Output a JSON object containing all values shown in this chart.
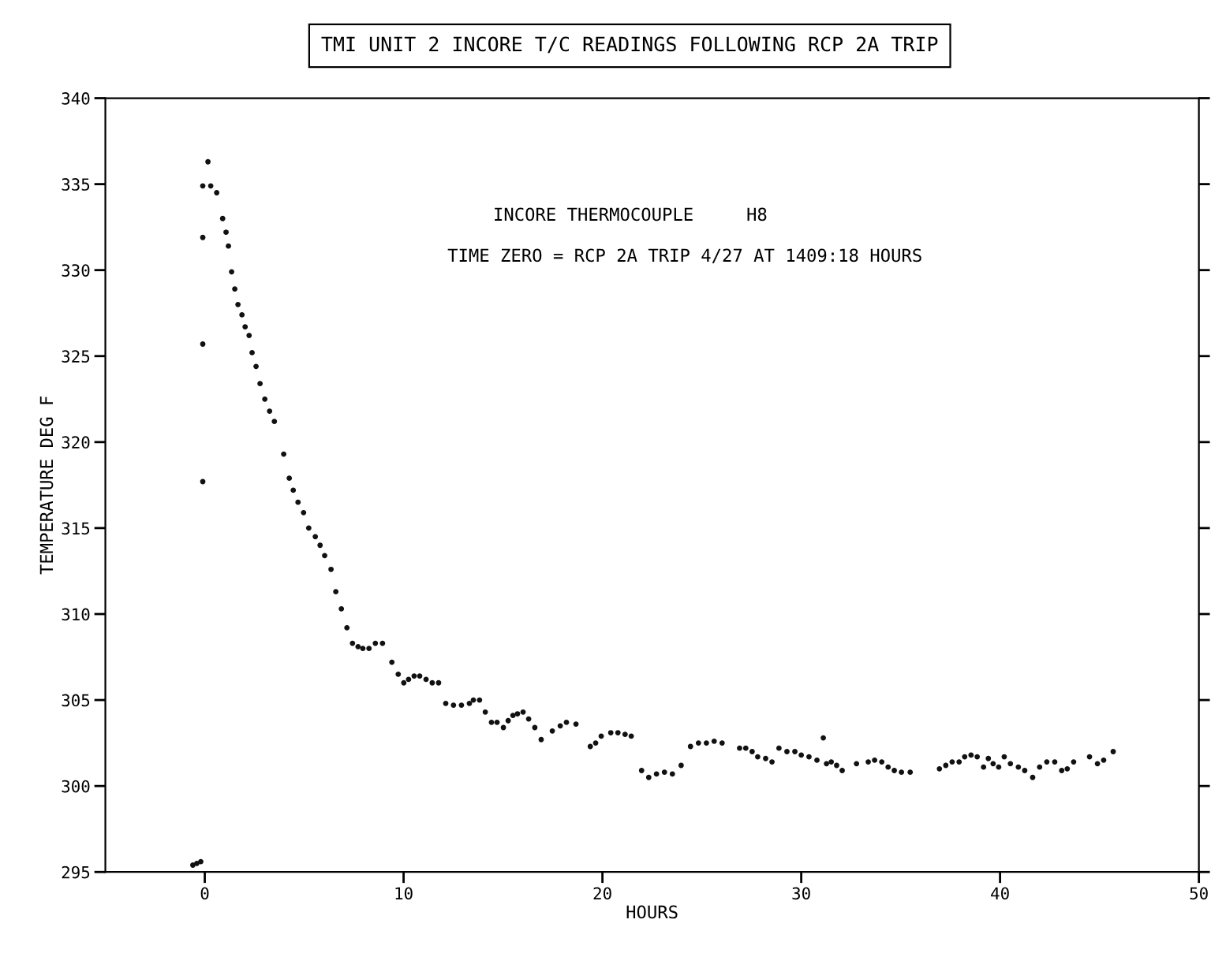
{
  "chart_data": {
    "type": "scatter",
    "title": "TMI UNIT 2 INCORE T/C READINGS FOLLOWING RCP 2A TRIP",
    "xlabel": "HOURS",
    "ylabel": "TEMPERATURE DEG F",
    "annotations": [
      "INCORE THERMOCOUPLE     H8",
      "TIME ZERO = RCP 2A TRIP 4/27 AT 1409:18 HOURS"
    ],
    "xlim": [
      -5,
      50
    ],
    "ylim": [
      295,
      340
    ],
    "xticks": [
      0,
      10,
      20,
      30,
      40,
      50
    ],
    "yticks": [
      295,
      300,
      305,
      310,
      315,
      320,
      325,
      330,
      335,
      340
    ],
    "grid": false,
    "marker": "circle",
    "series": [
      {
        "color": "#111111",
        "x": [
          -0.6,
          -0.4,
          -0.2,
          -0.1,
          -0.1,
          -0.1,
          -0.1,
          0.16,
          0.3,
          0.6,
          0.9,
          1.07,
          1.19,
          1.35,
          1.51,
          1.67,
          1.87,
          2.03,
          2.23,
          2.38,
          2.58,
          2.78,
          3.02,
          3.26,
          3.5,
          3.97,
          4.25,
          4.45,
          4.69,
          4.97,
          5.23,
          5.56,
          5.8,
          6.03,
          6.35,
          6.59,
          6.87,
          7.15,
          7.43,
          7.71,
          7.95,
          8.26,
          8.58,
          8.94,
          9.41,
          9.73,
          10.01,
          10.25,
          10.53,
          10.81,
          11.13,
          11.44,
          11.76,
          12.12,
          12.51,
          12.91,
          13.31,
          13.51,
          13.82,
          14.11,
          14.42,
          14.7,
          15.02,
          15.26,
          15.5,
          15.73,
          16.01,
          16.29,
          16.6,
          16.92,
          17.48,
          17.88,
          18.19,
          18.67,
          19.39,
          19.66,
          19.94,
          20.42,
          20.78,
          21.14,
          21.45,
          21.97,
          22.33,
          22.72,
          23.12,
          23.52,
          23.96,
          24.43,
          24.83,
          25.23,
          25.62,
          26.02,
          26.9,
          27.21,
          27.53,
          27.81,
          28.21,
          28.53,
          28.88,
          29.28,
          29.68,
          30.0,
          30.39,
          30.79,
          31.11,
          31.27,
          31.51,
          31.78,
          32.06,
          32.78,
          33.37,
          33.69,
          34.05,
          34.37,
          34.68,
          35.04,
          35.48,
          36.95,
          37.27,
          37.59,
          37.94,
          38.22,
          38.54,
          38.85,
          39.17,
          39.41,
          39.65,
          39.93,
          40.21,
          40.52,
          40.92,
          41.24,
          41.64,
          41.99,
          42.35,
          42.75,
          43.1,
          43.38,
          43.7,
          44.5,
          44.9,
          45.21,
          45.69
        ],
        "values": [
          295.4,
          295.5,
          295.6,
          317.7,
          325.7,
          331.9,
          334.9,
          336.3,
          334.9,
          334.5,
          333.0,
          332.2,
          331.4,
          329.9,
          328.9,
          328.0,
          327.4,
          326.7,
          326.2,
          325.2,
          324.4,
          323.4,
          322.5,
          321.8,
          321.2,
          319.3,
          317.9,
          317.2,
          316.5,
          315.9,
          315.0,
          314.5,
          314.0,
          313.4,
          312.6,
          311.3,
          310.3,
          309.2,
          308.3,
          308.1,
          308.0,
          308.0,
          308.3,
          308.3,
          307.2,
          306.5,
          306.0,
          306.2,
          306.4,
          306.4,
          306.2,
          306.0,
          306.0,
          304.8,
          304.7,
          304.7,
          304.8,
          305.0,
          305.0,
          304.3,
          303.7,
          303.7,
          303.4,
          303.8,
          304.1,
          304.2,
          304.3,
          303.9,
          303.4,
          302.7,
          303.2,
          303.5,
          303.7,
          303.6,
          302.3,
          302.5,
          302.9,
          303.1,
          303.1,
          303.0,
          302.9,
          300.9,
          300.5,
          300.7,
          300.8,
          300.7,
          301.2,
          302.3,
          302.5,
          302.5,
          302.6,
          302.5,
          302.2,
          302.2,
          302.0,
          301.7,
          301.6,
          301.4,
          302.2,
          302.0,
          302.0,
          301.8,
          301.7,
          301.5,
          302.8,
          301.3,
          301.4,
          301.2,
          300.9,
          301.3,
          301.4,
          301.5,
          301.4,
          301.1,
          300.9,
          300.8,
          300.8,
          301.0,
          301.2,
          301.4,
          301.4,
          301.7,
          301.8,
          301.7,
          301.1,
          301.6,
          301.3,
          301.1,
          301.7,
          301.3,
          301.1,
          300.9,
          300.5,
          301.1,
          301.4,
          301.4,
          300.9,
          301.0,
          301.4,
          301.7,
          301.3,
          301.5,
          302.0
        ]
      }
    ]
  }
}
